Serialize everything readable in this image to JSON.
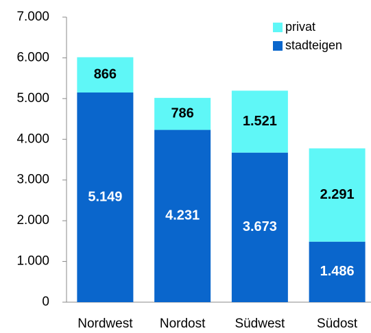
{
  "chart_data": {
    "type": "stacked_bar",
    "categories": [
      "Nordwest",
      "Nordost",
      "Südwest",
      "Südost"
    ],
    "series": [
      {
        "name": "stadteigen",
        "color": "#0a66cc",
        "label_color": "#ffffff",
        "values": [
          5149,
          4231,
          3673,
          1486
        ],
        "value_labels": [
          "5.149",
          "4.231",
          "3.673",
          "1.486"
        ]
      },
      {
        "name": "privat",
        "color": "#5ff7f7",
        "label_color": "#000000",
        "values": [
          866,
          786,
          1521,
          2291
        ],
        "value_labels": [
          "866",
          "786",
          "1.521",
          "2.291"
        ]
      }
    ],
    "ylim": [
      0,
      7000
    ],
    "yticks": [
      0,
      {
        "value": 1000,
        "label": "1.000"
      },
      {
        "value": 2000,
        "label": "2.000"
      },
      {
        "value": 3000,
        "label": "3.000"
      },
      {
        "value": 4000,
        "label": "4.000"
      },
      {
        "value": 5000,
        "label": "5.000"
      },
      {
        "value": 6000,
        "label": "6.000"
      },
      {
        "value": 7000,
        "label": "7.000"
      }
    ],
    "grid": false,
    "legend": "top-right"
  }
}
